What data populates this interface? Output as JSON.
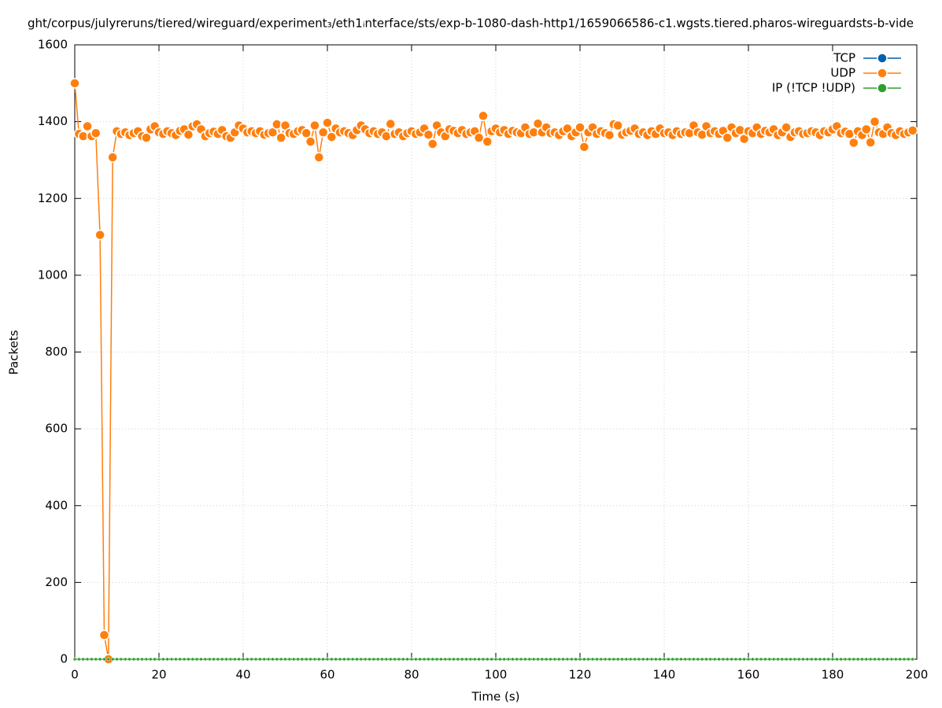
{
  "chart_data": {
    "type": "line",
    "title": "ght/corpus/julyreruns/tiered/wireguard/experiment₃/eth1ᵢnterface/sts/exp-b-1080-dash-http1/1659066586-c1.wgsts.tiered.pharos-wireguardsts-b-vide",
    "x_label": "Time (s)",
    "y_label": "Packets",
    "xlim": [
      0,
      200
    ],
    "xticks": [
      0,
      20,
      40,
      60,
      80,
      100,
      120,
      140,
      160,
      180,
      200
    ],
    "ylim": [
      0,
      1600
    ],
    "yticks": [
      0,
      200,
      400,
      600,
      800,
      1000,
      1200,
      1400,
      1600
    ],
    "grid": true,
    "legend": "top-right",
    "x": [
      0,
      1,
      2,
      3,
      4,
      5,
      6,
      7,
      8,
      9,
      10,
      11,
      12,
      13,
      14,
      15,
      16,
      17,
      18,
      19,
      20,
      21,
      22,
      23,
      24,
      25,
      26,
      27,
      28,
      29,
      30,
      31,
      32,
      33,
      34,
      35,
      36,
      37,
      38,
      39,
      40,
      41,
      42,
      43,
      44,
      45,
      46,
      47,
      48,
      49,
      50,
      51,
      52,
      53,
      54,
      55,
      56,
      57,
      58,
      59,
      60,
      61,
      62,
      63,
      64,
      65,
      66,
      67,
      68,
      69,
      70,
      71,
      72,
      73,
      74,
      75,
      76,
      77,
      78,
      79,
      80,
      81,
      82,
      83,
      84,
      85,
      86,
      87,
      88,
      89,
      90,
      91,
      92,
      93,
      94,
      95,
      96,
      97,
      98,
      99,
      100,
      101,
      102,
      103,
      104,
      105,
      106,
      107,
      108,
      109,
      110,
      111,
      112,
      113,
      114,
      115,
      116,
      117,
      118,
      119,
      120,
      121,
      122,
      123,
      124,
      125,
      126,
      127,
      128,
      129,
      130,
      131,
      132,
      133,
      134,
      135,
      136,
      137,
      138,
      139,
      140,
      141,
      142,
      143,
      144,
      145,
      146,
      147,
      148,
      149,
      150,
      151,
      152,
      153,
      154,
      155,
      156,
      157,
      158,
      159,
      160,
      161,
      162,
      163,
      164,
      165,
      166,
      167,
      168,
      169,
      170,
      171,
      172,
      173,
      174,
      175,
      176,
      177,
      178,
      179,
      180,
      181,
      182,
      183,
      184,
      185,
      186,
      187,
      188,
      189,
      190,
      191,
      192,
      193,
      194,
      195,
      196,
      197,
      198,
      199
    ],
    "series": [
      {
        "name": "TCP",
        "color": "#0060ad",
        "values": [
          0,
          0,
          0,
          0,
          0,
          0,
          0,
          0,
          0,
          0,
          0,
          0,
          0,
          0,
          0,
          0,
          0,
          0,
          0,
          0,
          0,
          0,
          0,
          0,
          0,
          0,
          0,
          0,
          0,
          0,
          0,
          0,
          0,
          0,
          0,
          0,
          0,
          0,
          0,
          0,
          0,
          0,
          0,
          0,
          0,
          0,
          0,
          0,
          0,
          0,
          0,
          0,
          0,
          0,
          0,
          0,
          0,
          0,
          0,
          0,
          0,
          0,
          0,
          0,
          0,
          0,
          0,
          0,
          0,
          0,
          0,
          0,
          0,
          0,
          0,
          0,
          0,
          0,
          0,
          0,
          0,
          0,
          0,
          0,
          0,
          0,
          0,
          0,
          0,
          0,
          0,
          0,
          0,
          0,
          0,
          0,
          0,
          0,
          0,
          0,
          0,
          0,
          0,
          0,
          0,
          0,
          0,
          0,
          0,
          0,
          0,
          0,
          0,
          0,
          0,
          0,
          0,
          0,
          0,
          0,
          0,
          0,
          0,
          0,
          0,
          0,
          0,
          0,
          0,
          0,
          0,
          0,
          0,
          0,
          0,
          0,
          0,
          0,
          0,
          0,
          0,
          0,
          0,
          0,
          0,
          0,
          0,
          0,
          0,
          0,
          0,
          0,
          0,
          0,
          0,
          0,
          0,
          0,
          0,
          0,
          0,
          0,
          0,
          0,
          0,
          0,
          0,
          0,
          0,
          0,
          0,
          0,
          0,
          0,
          0,
          0,
          0,
          0,
          0,
          0,
          0,
          0,
          0,
          0,
          0,
          0,
          0,
          0,
          0,
          0,
          0,
          0,
          0,
          0,
          0,
          0,
          0,
          0,
          0,
          0
        ]
      },
      {
        "name": "UDP",
        "color": "#ff7f0e",
        "values": [
          1500,
          1368,
          1362,
          1388,
          1362,
          1370,
          1105,
          63,
          0,
          1307,
          1375,
          1368,
          1372,
          1365,
          1370,
          1375,
          1362,
          1358,
          1380,
          1388,
          1372,
          1368,
          1375,
          1370,
          1365,
          1376,
          1380,
          1366,
          1388,
          1393,
          1380,
          1362,
          1370,
          1374,
          1368,
          1378,
          1362,
          1358,
          1372,
          1390,
          1382,
          1372,
          1375,
          1370,
          1375,
          1366,
          1370,
          1372,
          1393,
          1358,
          1390,
          1370,
          1368,
          1375,
          1378,
          1370,
          1348,
          1390,
          1307,
          1372,
          1397,
          1360,
          1382,
          1372,
          1375,
          1370,
          1365,
          1378,
          1390,
          1380,
          1370,
          1375,
          1368,
          1372,
          1362,
          1394,
          1368,
          1372,
          1362,
          1370,
          1375,
          1368,
          1372,
          1382,
          1366,
          1342,
          1390,
          1372,
          1362,
          1380,
          1376,
          1370,
          1378,
          1368,
          1372,
          1375,
          1358,
          1415,
          1348,
          1375,
          1382,
          1372,
          1378,
          1368,
          1376,
          1372,
          1370,
          1385,
          1368,
          1372,
          1395,
          1372,
          1385,
          1370,
          1372,
          1365,
          1375,
          1382,
          1362,
          1372,
          1385,
          1334,
          1372,
          1385,
          1368,
          1375,
          1370,
          1365,
          1393,
          1390,
          1366,
          1372,
          1376,
          1382,
          1368,
          1372,
          1365,
          1375,
          1368,
          1382,
          1370,
          1372,
          1365,
          1375,
          1368,
          1372,
          1370,
          1390,
          1372,
          1366,
          1388,
          1370,
          1375,
          1368,
          1376,
          1358,
          1385,
          1370,
          1378,
          1355,
          1375,
          1370,
          1385,
          1368,
          1376,
          1372,
          1380,
          1365,
          1372,
          1385,
          1360,
          1372,
          1375,
          1368,
          1370,
          1375,
          1372,
          1365,
          1375,
          1372,
          1380,
          1388,
          1370,
          1374,
          1368,
          1345,
          1375,
          1365,
          1380,
          1346,
          1400,
          1372,
          1368,
          1385,
          1370,
          1365,
          1375,
          1368,
          1372,
          1377
        ]
      },
      {
        "name": "IP (!TCP  !UDP)",
        "color": "#2ca02c",
        "values": [
          0,
          0,
          0,
          0,
          0,
          0,
          0,
          0,
          0,
          0,
          0,
          0,
          0,
          0,
          0,
          0,
          0,
          0,
          0,
          0,
          0,
          0,
          0,
          0,
          0,
          0,
          0,
          0,
          0,
          0,
          0,
          0,
          0,
          0,
          0,
          0,
          0,
          0,
          0,
          0,
          0,
          0,
          0,
          0,
          0,
          0,
          0,
          0,
          0,
          0,
          0,
          0,
          0,
          0,
          0,
          0,
          0,
          0,
          0,
          0,
          0,
          0,
          0,
          0,
          0,
          0,
          0,
          0,
          0,
          0,
          0,
          0,
          0,
          0,
          0,
          0,
          0,
          0,
          0,
          0,
          0,
          0,
          0,
          0,
          0,
          0,
          0,
          0,
          0,
          0,
          0,
          0,
          0,
          0,
          0,
          0,
          0,
          0,
          0,
          0,
          0,
          0,
          0,
          0,
          0,
          0,
          0,
          0,
          0,
          0,
          0,
          0,
          0,
          0,
          0,
          0,
          0,
          0,
          0,
          0,
          0,
          0,
          0,
          0,
          0,
          0,
          0,
          0,
          0,
          0,
          0,
          0,
          0,
          0,
          0,
          0,
          0,
          0,
          0,
          0,
          0,
          0,
          0,
          0,
          0,
          0,
          0,
          0,
          0,
          0,
          0,
          0,
          0,
          0,
          0,
          0,
          0,
          0,
          0,
          0,
          0,
          0,
          0,
          0,
          0,
          0,
          0,
          0,
          0,
          0,
          0,
          0,
          0,
          0,
          0,
          0,
          0,
          0,
          0,
          0,
          0,
          0,
          0,
          0,
          0,
          0,
          0,
          0,
          0,
          0,
          0,
          0,
          0,
          0,
          0,
          0,
          0,
          0,
          0,
          0
        ]
      }
    ]
  }
}
